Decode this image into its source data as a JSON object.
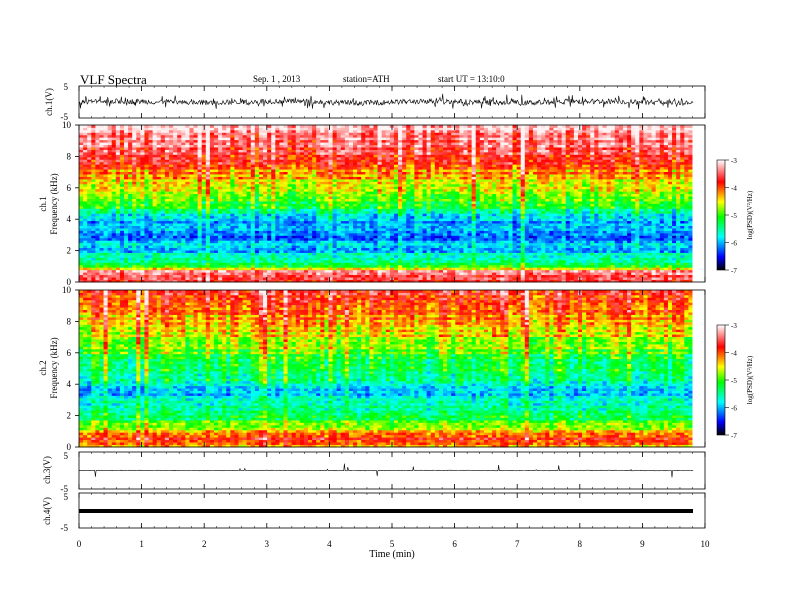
{
  "header": {
    "title": "VLF Spectra",
    "date": "Sep. 1 , 2013",
    "station": "station=ATH",
    "start": "start UT =  13:10:0"
  },
  "chart_data": [
    {
      "type": "line",
      "name": "ch1-waveform",
      "ylabel": "ch.1(V)",
      "ylim": [
        -5,
        5
      ],
      "yticks": [
        "5",
        "-5"
      ],
      "baseline": 0,
      "amplitude_note": "dense noisy trace near 0 V with bursts up to about ±2 V"
    },
    {
      "type": "heatmap",
      "name": "ch1-spectrogram",
      "ylabel_channel": "ch.1",
      "ylabel": "Frequency (kHz)",
      "ylim": [
        0,
        10
      ],
      "yticks": [
        "0",
        "2",
        "4",
        "6",
        "8",
        "10"
      ],
      "xlim": [
        0,
        10
      ],
      "data_end_min": 9.8,
      "colorbar": {
        "label": "log(PSD)(V²/Hz)",
        "range": [
          -7,
          -3
        ],
        "ticks": [
          "-3",
          "-4",
          "-5",
          "-6",
          "-7"
        ]
      },
      "logpsd_profile": {
        "freq_khz": [
          0,
          0.3,
          0.7,
          1,
          1.5,
          2,
          3,
          4,
          4.5,
          5,
          6,
          7,
          8,
          9,
          10
        ],
        "logpsd": [
          -4,
          -3.6,
          -3.4,
          -5.2,
          -5.6,
          -5.9,
          -6.1,
          -5.9,
          -5.5,
          -5.0,
          -4.6,
          -4.2,
          -3.7,
          -3.4,
          -3.2
        ]
      }
    },
    {
      "type": "heatmap",
      "name": "ch2-spectrogram",
      "ylabel_channel": "ch.2",
      "ylabel": "Frequency (kHz)",
      "ylim": [
        0,
        10
      ],
      "yticks": [
        "0",
        "2",
        "4",
        "6",
        "8",
        "10"
      ],
      "xlim": [
        0,
        10
      ],
      "data_end_min": 9.8,
      "colorbar": {
        "label": "log(PSD)(V²/Hz)",
        "range": [
          -7,
          -3
        ],
        "ticks": [
          "-3",
          "-4",
          "-5",
          "-6",
          "-7"
        ]
      },
      "logpsd_profile": {
        "freq_khz": [
          0,
          0.5,
          1,
          1.5,
          2,
          3,
          3.5,
          4,
          5,
          6,
          7,
          8,
          9,
          10
        ],
        "logpsd": [
          -4.2,
          -3.9,
          -4.3,
          -5.0,
          -5.4,
          -5.8,
          -6.0,
          -5.6,
          -5.3,
          -5.0,
          -4.6,
          -4.3,
          -4.0,
          -3.7
        ]
      }
    },
    {
      "type": "line",
      "name": "ch3-waveform",
      "ylabel": "ch.3(V)",
      "ylim": [
        -5,
        5
      ],
      "yticks": [
        "5",
        "-5"
      ],
      "baseline": 0,
      "amplitude_note": "near-flat trace at 0 V"
    },
    {
      "type": "line",
      "name": "ch4-waveform",
      "ylabel": "ch.4(V)",
      "ylim": [
        -5,
        5
      ],
      "yticks": [
        "5",
        "-5"
      ],
      "baseline": 0,
      "amplitude_note": "thick flat trace at 0 V"
    }
  ],
  "xaxis": {
    "label": "Time (min)",
    "xlim": [
      0,
      10
    ],
    "ticks": [
      "0",
      "1",
      "2",
      "3",
      "4",
      "5",
      "6",
      "7",
      "8",
      "9",
      "10"
    ]
  },
  "colors": {
    "colormap": [
      "#000000",
      "#0000ff",
      "#00ffff",
      "#00ff00",
      "#ffff00",
      "#ff0000",
      "#ffffff"
    ]
  }
}
